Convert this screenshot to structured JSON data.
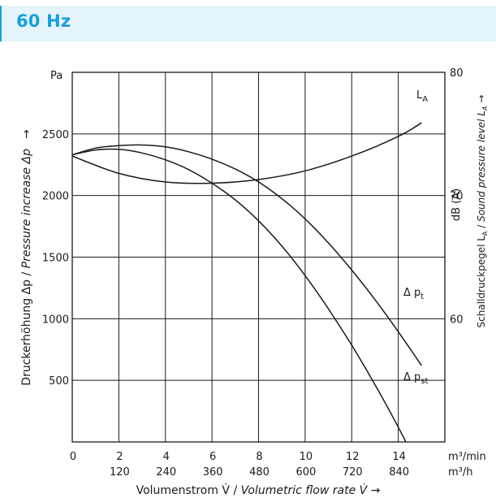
{
  "header": {
    "title": "60 Hz"
  },
  "chart_data": {
    "type": "line",
    "xlabel_plain": "Volumenstrom V̇ / ",
    "xlabel_italic": "Volumetric flow rate V̇ →",
    "ylabel_plain": "Druckerhöhung Δp / ",
    "ylabel_italic": "Pressure increase Δp",
    "ylabel_arrow": "→",
    "y_unit": "Pa",
    "y2_unit": "dB (A)",
    "y2_label_plain": "Schalldruckpegel L",
    "y2_label_sub": "A",
    "y2_label_sep": " / ",
    "y2_label_italic": "Sound pressure level L",
    "y2_label_italic_sub": "A",
    "y2_label_arrow": "→",
    "x_unit_1": "m³/min",
    "x_unit_2": "m³/h",
    "xlim": [
      0,
      16
    ],
    "ylim": [
      0,
      3000
    ],
    "y2lim": [
      50,
      80
    ],
    "x_ticks": [
      0,
      2,
      4,
      6,
      8,
      10,
      12,
      14
    ],
    "x_tick_labels": [
      "0",
      "2",
      "4",
      "6",
      "8",
      "10",
      "12",
      "14"
    ],
    "x2_tick_labels": [
      "",
      "120",
      "240",
      "360",
      "480",
      "600",
      "720",
      "840"
    ],
    "y_ticks": [
      500,
      1000,
      1500,
      2000,
      2500
    ],
    "y_tick_labels": [
      "500",
      "1000",
      "1500",
      "2000",
      "2500"
    ],
    "y2_ticks": [
      60,
      70,
      80
    ],
    "y2_tick_labels": [
      "60",
      "70",
      "80"
    ],
    "grid": true,
    "series": [
      {
        "name": "Δ p_t",
        "label_main": "Δ p",
        "label_sub": "t",
        "axis": "left",
        "x": [
          0,
          1,
          2,
          3,
          4,
          5,
          6,
          7,
          8,
          9,
          10,
          11,
          12,
          13,
          14,
          15
        ],
        "y": [
          2330,
          2385,
          2405,
          2410,
          2395,
          2355,
          2295,
          2215,
          2110,
          1975,
          1810,
          1615,
          1395,
          1155,
          895,
          620
        ]
      },
      {
        "name": "Δ p_st",
        "label_main": "Δ p",
        "label_sub": "st",
        "axis": "left",
        "x": [
          0,
          1,
          2,
          3,
          4,
          5,
          6,
          7,
          8,
          9,
          10,
          11,
          12,
          13,
          14,
          15
        ],
        "y": [
          2330,
          2370,
          2375,
          2345,
          2290,
          2210,
          2100,
          1965,
          1795,
          1590,
          1350,
          1080,
          785,
          465,
          120,
          -250
        ]
      },
      {
        "name": "L_A",
        "label_main": "L",
        "label_sub": "A",
        "axis": "right",
        "x": [
          0,
          2,
          4,
          6,
          8,
          10,
          12,
          14,
          15
        ],
        "y": [
          73.2,
          71.8,
          71.1,
          71.0,
          71.3,
          72.0,
          73.2,
          74.8,
          75.9
        ]
      }
    ]
  }
}
